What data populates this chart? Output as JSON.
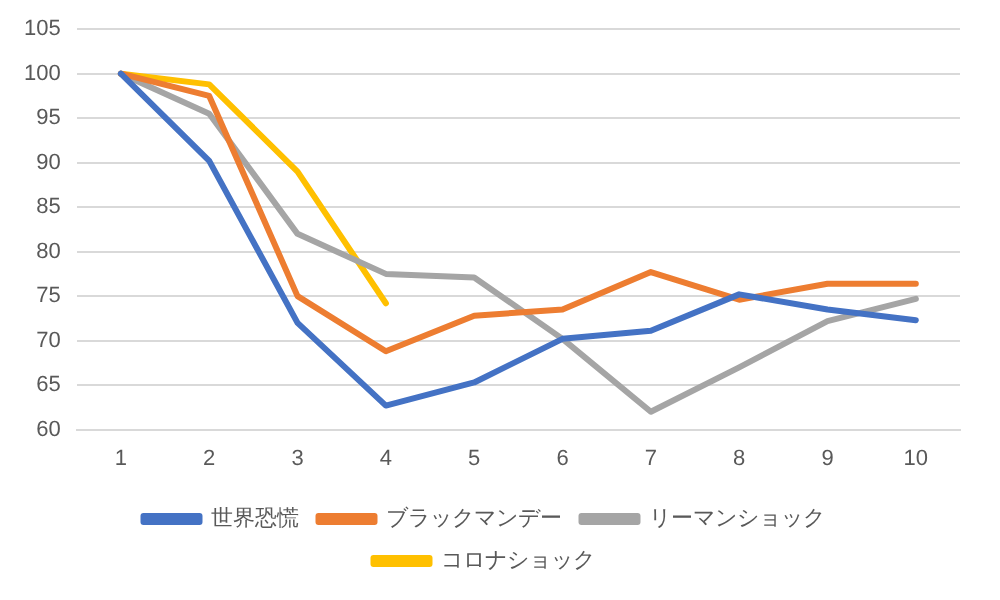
{
  "chart_data": {
    "type": "line",
    "categories": [
      "1",
      "2",
      "3",
      "4",
      "5",
      "6",
      "7",
      "8",
      "9",
      "10"
    ],
    "series": [
      {
        "name": "世界恐慌",
        "color": "#4472c4",
        "values": [
          100,
          90.2,
          72,
          62.7,
          65.3,
          70.2,
          71.1,
          75.2,
          73.5,
          72.3
        ]
      },
      {
        "name": "ブラックマンデー",
        "color": "#ed7d31",
        "values": [
          100,
          97.5,
          75,
          68.8,
          72.8,
          73.5,
          77.7,
          74.6,
          76.4,
          76.4
        ]
      },
      {
        "name": "リーマンショック",
        "color": "#a5a5a5",
        "values": [
          100,
          95.5,
          82,
          77.5,
          77.1,
          70.2,
          62,
          67,
          72.2,
          74.7
        ]
      },
      {
        "name": "コロナショック",
        "color": "#ffc000",
        "values": [
          100,
          98.8,
          89,
          74.2,
          null,
          null,
          null,
          null,
          null,
          null
        ]
      }
    ],
    "ylim": [
      60,
      105
    ],
    "yticks": [
      60,
      65,
      70,
      75,
      80,
      85,
      90,
      95,
      100,
      105
    ],
    "grid": "y",
    "legend": "bottom",
    "marker": "none",
    "line_style": "solid"
  }
}
